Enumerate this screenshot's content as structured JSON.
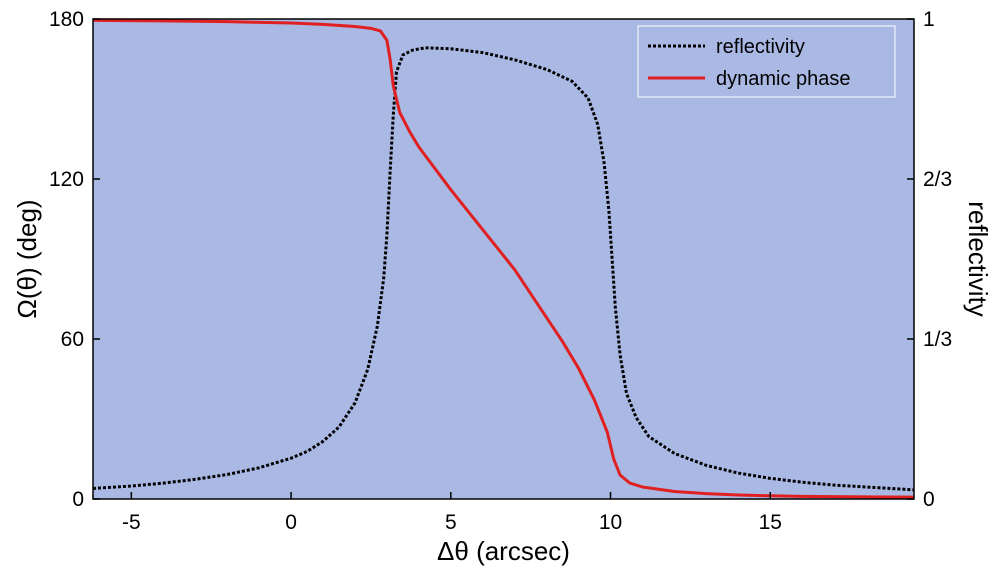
{
  "chart_data": {
    "type": "line",
    "xlabel": "Δθ (arcsec)",
    "ylabel": "Ω(θ)   (deg)",
    "y2label": "reflectivity",
    "xlim": [
      -6.2,
      19.5
    ],
    "ylim": [
      0,
      180
    ],
    "y2lim": [
      0,
      1
    ],
    "grid": false,
    "background": "#aab8e4",
    "legend_position": "top-right",
    "x_ticks": [
      {
        "value": -5,
        "label": "-5"
      },
      {
        "value": 0,
        "label": "0"
      },
      {
        "value": 5,
        "label": "5"
      },
      {
        "value": 10,
        "label": "10"
      },
      {
        "value": 15,
        "label": "15"
      }
    ],
    "y_ticks": [
      {
        "value": 0,
        "label": "0"
      },
      {
        "value": 60,
        "label": "60"
      },
      {
        "value": 120,
        "label": "120"
      },
      {
        "value": 180,
        "label": "180"
      }
    ],
    "y2_ticks": [
      {
        "value": 0,
        "label": "0"
      },
      {
        "value": 0.3333,
        "label": "1/3"
      },
      {
        "value": 0.6667,
        "label": "2/3"
      },
      {
        "value": 1,
        "label": "1"
      }
    ],
    "series": [
      {
        "name": "reflectivity",
        "axis": "right",
        "color": "#000000",
        "style": "dotted",
        "points": [
          [
            -6.2,
            0.022
          ],
          [
            -5,
            0.027
          ],
          [
            -4,
            0.033
          ],
          [
            -3,
            0.041
          ],
          [
            -2,
            0.051
          ],
          [
            -1,
            0.065
          ],
          [
            0,
            0.085
          ],
          [
            0.5,
            0.099
          ],
          [
            1,
            0.12
          ],
          [
            1.5,
            0.15
          ],
          [
            2,
            0.2
          ],
          [
            2.4,
            0.27
          ],
          [
            2.7,
            0.36
          ],
          [
            2.9,
            0.46
          ],
          [
            3.0,
            0.55
          ],
          [
            3.1,
            0.68
          ],
          [
            3.2,
            0.8
          ],
          [
            3.3,
            0.89
          ],
          [
            3.5,
            0.925
          ],
          [
            3.8,
            0.935
          ],
          [
            4.2,
            0.94
          ],
          [
            5,
            0.938
          ],
          [
            6,
            0.93
          ],
          [
            7,
            0.915
          ],
          [
            8,
            0.895
          ],
          [
            8.8,
            0.87
          ],
          [
            9.3,
            0.835
          ],
          [
            9.6,
            0.78
          ],
          [
            9.8,
            0.7
          ],
          [
            9.95,
            0.6
          ],
          [
            10.05,
            0.5
          ],
          [
            10.15,
            0.4
          ],
          [
            10.3,
            0.3
          ],
          [
            10.5,
            0.22
          ],
          [
            10.8,
            0.17
          ],
          [
            11.2,
            0.13
          ],
          [
            12,
            0.095
          ],
          [
            13,
            0.07
          ],
          [
            14,
            0.054
          ],
          [
            15,
            0.043
          ],
          [
            16,
            0.035
          ],
          [
            17,
            0.029
          ],
          [
            18,
            0.025
          ],
          [
            19,
            0.021
          ],
          [
            19.5,
            0.019
          ]
        ]
      },
      {
        "name": "dynamic phase",
        "axis": "left",
        "color": "#e02020",
        "style": "solid",
        "points": [
          [
            -6.2,
            179.5
          ],
          [
            -4,
            179.3
          ],
          [
            -2,
            179
          ],
          [
            0,
            178.5
          ],
          [
            1,
            178
          ],
          [
            2,
            177.2
          ],
          [
            2.5,
            176.5
          ],
          [
            2.8,
            175.5
          ],
          [
            3.0,
            172
          ],
          [
            3.1,
            165
          ],
          [
            3.2,
            155
          ],
          [
            3.4,
            145
          ],
          [
            3.7,
            138
          ],
          [
            4,
            132
          ],
          [
            5,
            116
          ],
          [
            6,
            101
          ],
          [
            7,
            86
          ],
          [
            8,
            68
          ],
          [
            8.5,
            59
          ],
          [
            9,
            49
          ],
          [
            9.5,
            37
          ],
          [
            9.9,
            25
          ],
          [
            10.1,
            15
          ],
          [
            10.3,
            9
          ],
          [
            10.6,
            6
          ],
          [
            11,
            4.5
          ],
          [
            12,
            2.8
          ],
          [
            13,
            2
          ],
          [
            14,
            1.5
          ],
          [
            15,
            1.2
          ],
          [
            16,
            1
          ],
          [
            17,
            0.9
          ],
          [
            18,
            0.8
          ],
          [
            19.5,
            0.7
          ]
        ]
      }
    ]
  }
}
